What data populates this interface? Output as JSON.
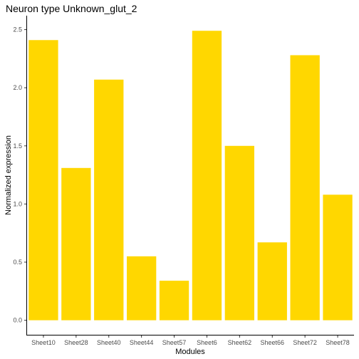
{
  "chart_data": {
    "type": "bar",
    "title": "Neuron type Unknown_glut_2",
    "xlabel": "Modules",
    "ylabel": "Normalized expression",
    "categories": [
      "Sheet10",
      "Sheet28",
      "Sheet40",
      "Sheet44",
      "Sheet57",
      "Sheet6",
      "Sheet62",
      "Sheet66",
      "Sheet72",
      "Sheet78"
    ],
    "values": [
      2.41,
      1.31,
      2.07,
      0.55,
      0.34,
      2.49,
      1.5,
      0.67,
      2.28,
      1.08
    ],
    "ylim": [
      -0.125,
      2.62
    ],
    "yticks": [
      0.0,
      0.5,
      1.0,
      1.5,
      2.0,
      2.5
    ],
    "ytick_labels": [
      "0.0",
      "0.5",
      "1.0",
      "1.5",
      "2.0",
      "2.5"
    ],
    "bar_color": "#FFD700",
    "grid": false,
    "legend": "none"
  }
}
